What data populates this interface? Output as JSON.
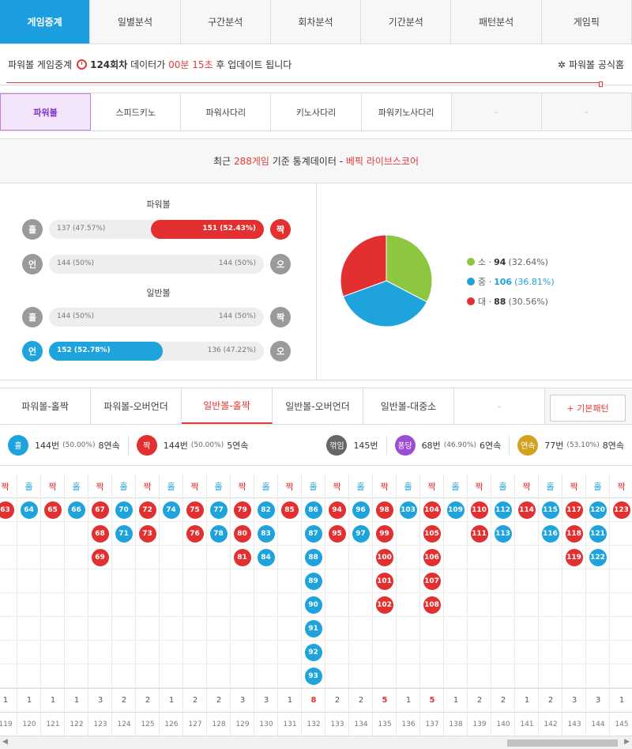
{
  "nav": {
    "tabs": [
      "게임중계",
      "일별분석",
      "구간분석",
      "회차분석",
      "기간분석",
      "패턴분석",
      "게임픽"
    ]
  },
  "info": {
    "prefix": "파워볼 게임중계",
    "round": "124회차",
    "mid": "데이터가",
    "time": "00분 15초",
    "suffix": "후 업데이트 됩니다",
    "official": "파워볼 공식홈"
  },
  "games": {
    "tabs": [
      "파워볼",
      "스피드키노",
      "파워사다리",
      "키노사다리",
      "파워키노사다리",
      "-",
      "-"
    ]
  },
  "stat_header": {
    "pre": "최근",
    "count": "288게임",
    "mid": "기준 통계데이터 -",
    "brand": "베픽 라이브스코어"
  },
  "powerball": {
    "title": "파워볼",
    "oddeven": {
      "left_icon": "홀",
      "left": "137 (47.57%)",
      "right": "151 (52.43%)",
      "right_icon": "짝",
      "right_pct": 52.43
    },
    "underover": {
      "left_icon": "언",
      "left": "144 (50%)",
      "right": "144 (50%)",
      "right_icon": "오"
    }
  },
  "normalball": {
    "title": "일반볼",
    "oddeven": {
      "left_icon": "홀",
      "left": "144 (50%)",
      "right": "144 (50%)",
      "right_icon": "짝"
    },
    "underover": {
      "left_icon": "언",
      "left": "152 (52.78%)",
      "right": "136 (47.22%)",
      "right_icon": "오",
      "left_pct": 52.78
    }
  },
  "pie": {
    "slices": [
      {
        "label": "소",
        "count": "94",
        "pct": "(32.64%)",
        "value": 94,
        "color": "#8dc63f"
      },
      {
        "label": "중",
        "count": "106",
        "pct": "(36.81%)",
        "value": 106,
        "color": "#1ea3dc"
      },
      {
        "label": "대",
        "count": "88",
        "pct": "(30.56%)",
        "value": 88,
        "color": "#e23030"
      }
    ]
  },
  "pattern_tabs": {
    "tabs": [
      "파워볼-홀짝",
      "파워볼-오버언더",
      "일반볼-홀짝",
      "일반볼-오버언더",
      "일반볼-대중소",
      "-"
    ],
    "button": "+ 기본패턴"
  },
  "summary": {
    "odd": {
      "icon": "홀",
      "count": "144번",
      "pct": "(50.00%)",
      "streak": "8연속"
    },
    "even": {
      "icon": "짝",
      "count": "144번",
      "pct": "(50.00%)",
      "streak": "5연속"
    },
    "bounce": {
      "icon": "꺾임",
      "count": "145번"
    },
    "pong": {
      "icon": "퐁당",
      "count": "68번",
      "pct": "(46.90%)",
      "streak": "6연속"
    },
    "cont": {
      "icon": "연속",
      "count": "77번",
      "pct": "(53.10%)",
      "streak": "8연속"
    }
  },
  "pattern": {
    "labels": {
      "odd": "홀",
      "even": "짝"
    },
    "columns": [
      {
        "type": "even",
        "numbers": [
          "63"
        ],
        "count": "1",
        "round": "119"
      },
      {
        "type": "odd",
        "numbers": [
          "64"
        ],
        "count": "1",
        "round": "120"
      },
      {
        "type": "even",
        "numbers": [
          "65"
        ],
        "count": "1",
        "round": "121"
      },
      {
        "type": "odd",
        "numbers": [
          "66"
        ],
        "count": "1",
        "round": "122"
      },
      {
        "type": "even",
        "numbers": [
          "67",
          "68",
          "69"
        ],
        "count": "3",
        "round": "123"
      },
      {
        "type": "odd",
        "numbers": [
          "70",
          "71"
        ],
        "count": "2",
        "round": "124"
      },
      {
        "type": "even",
        "numbers": [
          "72",
          "73"
        ],
        "count": "2",
        "round": "125"
      },
      {
        "type": "odd",
        "numbers": [
          "74"
        ],
        "count": "1",
        "round": "126"
      },
      {
        "type": "even",
        "numbers": [
          "75",
          "76"
        ],
        "count": "2",
        "round": "127"
      },
      {
        "type": "odd",
        "numbers": [
          "77",
          "78"
        ],
        "count": "2",
        "round": "128"
      },
      {
        "type": "even",
        "numbers": [
          "79",
          "80",
          "81"
        ],
        "count": "3",
        "round": "129"
      },
      {
        "type": "odd",
        "numbers": [
          "82",
          "83",
          "84"
        ],
        "count": "3",
        "round": "130"
      },
      {
        "type": "even",
        "numbers": [
          "85"
        ],
        "count": "1",
        "round": "131"
      },
      {
        "type": "odd",
        "numbers": [
          "86",
          "87",
          "88",
          "89",
          "90",
          "91",
          "92",
          "93"
        ],
        "count": "8",
        "round": "132"
      },
      {
        "type": "even",
        "numbers": [
          "94",
          "95"
        ],
        "count": "2",
        "round": "133"
      },
      {
        "type": "odd",
        "numbers": [
          "96",
          "97"
        ],
        "count": "2",
        "round": "134"
      },
      {
        "type": "even",
        "numbers": [
          "98",
          "99",
          "100",
          "101",
          "102"
        ],
        "count": "5",
        "round": "135"
      },
      {
        "type": "odd",
        "numbers": [
          "103"
        ],
        "count": "1",
        "round": "136"
      },
      {
        "type": "even",
        "numbers": [
          "104",
          "105",
          "106",
          "107",
          "108"
        ],
        "count": "5",
        "round": "137"
      },
      {
        "type": "odd",
        "numbers": [
          "109"
        ],
        "count": "1",
        "round": "138"
      },
      {
        "type": "even",
        "numbers": [
          "110",
          "111"
        ],
        "count": "2",
        "round": "139"
      },
      {
        "type": "odd",
        "numbers": [
          "112",
          "113"
        ],
        "count": "2",
        "round": "140"
      },
      {
        "type": "even",
        "numbers": [
          "114"
        ],
        "count": "1",
        "round": "141"
      },
      {
        "type": "odd",
        "numbers": [
          "115",
          "116"
        ],
        "count": "2",
        "round": "142"
      },
      {
        "type": "even",
        "numbers": [
          "117",
          "118",
          "119"
        ],
        "count": "3",
        "round": "143"
      },
      {
        "type": "odd",
        "numbers": [
          "120",
          "121",
          "122"
        ],
        "count": "3",
        "round": "144"
      },
      {
        "type": "even",
        "numbers": [
          "123"
        ],
        "count": "1",
        "round": "145"
      }
    ]
  },
  "colors": {
    "odd": "#1ea3dc",
    "even": "#e23030",
    "accent": "#1a9ee0"
  }
}
